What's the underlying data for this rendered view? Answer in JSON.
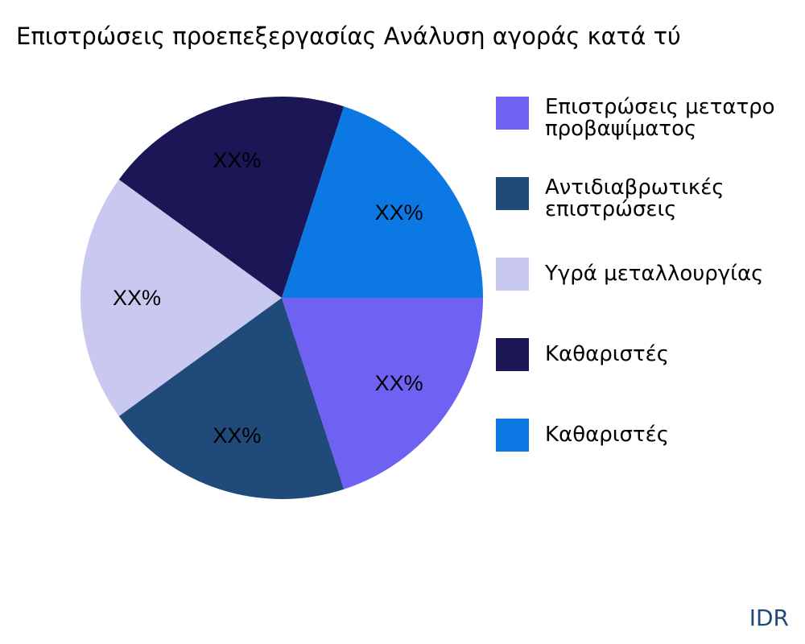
{
  "chart_data": {
    "type": "pie",
    "title": "Επιστρώσεις προεπεξεργασίας Ανάλυση αγοράς κατά τύ",
    "slices": [
      {
        "name": "Επιστρώσεις μετατροπής προβαψίματος",
        "legend_lines": [
          "Επιστρώσεις μετατρο",
          "προβαψίματος"
        ],
        "value": 20,
        "label": "XX%",
        "color": "#6f61f2"
      },
      {
        "name": "Αντιδιαβρωτικές επιστρώσεις",
        "legend_lines": [
          "Αντιδιαβρωτικές",
          "επιστρώσεις"
        ],
        "value": 20,
        "label": "XX%",
        "color": "#1f4a7a"
      },
      {
        "name": "Υγρά μεταλλουργίας",
        "legend_lines": [
          "Υγρά μεταλλουργίας"
        ],
        "value": 20,
        "label": "XX%",
        "color": "#c8c8f0"
      },
      {
        "name": "Καθαριστές",
        "legend_lines": [
          "Καθαριστές"
        ],
        "value": 20,
        "label": "XX%",
        "color": "#1b1655"
      },
      {
        "name": "Καθαριστές",
        "legend_lines": [
          "Καθαριστές"
        ],
        "value": 20,
        "label": "XX%",
        "color": "#0b78e3"
      }
    ],
    "legend_position": "right"
  },
  "brand": "IDR"
}
